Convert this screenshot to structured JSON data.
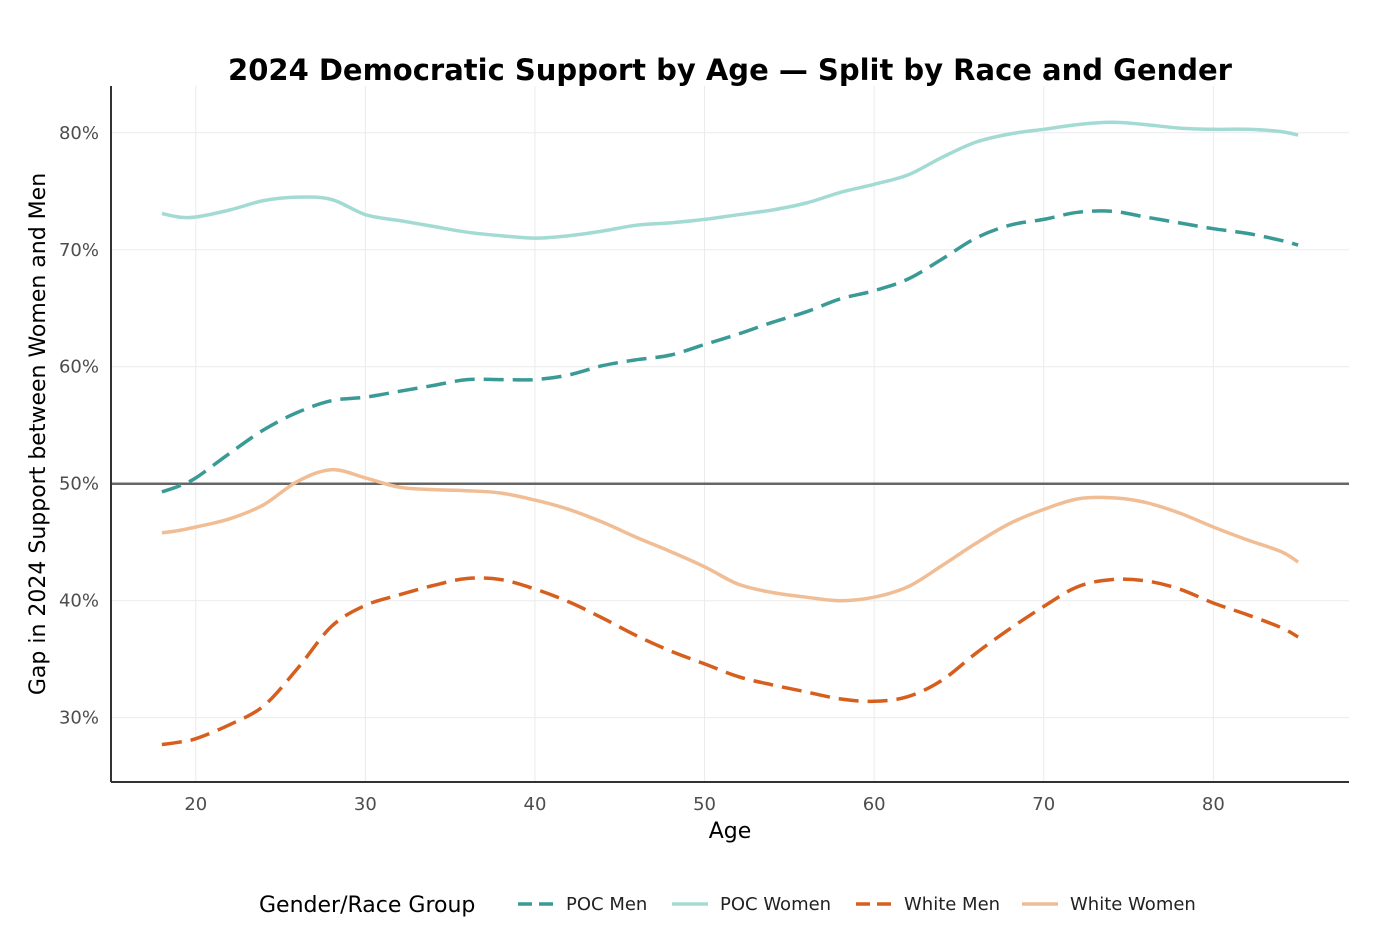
{
  "chart_data": {
    "type": "line",
    "title": "2024 Democratic Support by Age — Split by Race and Gender",
    "xlabel": "Age",
    "ylabel": "Gap in 2024 Support between Women and Men",
    "xlim": [
      15,
      88
    ],
    "ylim": [
      24.5,
      84
    ],
    "x_ticks": [
      20,
      30,
      40,
      50,
      60,
      70,
      80
    ],
    "y_ticks": [
      30,
      40,
      50,
      60,
      70,
      80
    ],
    "y_tick_labels": [
      "30%",
      "40%",
      "50%",
      "60%",
      "70%",
      "80%"
    ],
    "reference_line_y": 50,
    "grid": true,
    "legend": {
      "title": "Gender/Race Group",
      "placement": "bottom"
    },
    "x": [
      18,
      19,
      20,
      22,
      24,
      26,
      28,
      30,
      32,
      34,
      36,
      38,
      40,
      42,
      44,
      46,
      48,
      50,
      52,
      54,
      56,
      58,
      60,
      62,
      64,
      66,
      68,
      70,
      72,
      74,
      76,
      78,
      80,
      82,
      84,
      85
    ],
    "series": [
      {
        "name": "POC Men",
        "color": "#3a9a96",
        "dashed": true,
        "values": [
          49.3,
          49.8,
          50.5,
          52.6,
          54.6,
          56.1,
          57.1,
          57.4,
          57.9,
          58.4,
          58.9,
          58.9,
          58.9,
          59.3,
          60.1,
          60.6,
          61.0,
          61.9,
          62.8,
          63.8,
          64.7,
          65.8,
          66.5,
          67.5,
          69.2,
          71.0,
          72.1,
          72.6,
          73.2,
          73.3,
          72.8,
          72.3,
          71.8,
          71.4,
          70.8,
          70.4
        ]
      },
      {
        "name": "POC Women",
        "color": "#a3dbd4",
        "dashed": false,
        "values": [
          73.1,
          72.8,
          72.8,
          73.4,
          74.2,
          74.5,
          74.3,
          73.0,
          72.5,
          72.0,
          71.5,
          71.2,
          71.0,
          71.2,
          71.6,
          72.1,
          72.3,
          72.6,
          73.0,
          73.4,
          74.0,
          74.9,
          75.6,
          76.4,
          77.9,
          79.2,
          79.9,
          80.3,
          80.7,
          80.9,
          80.7,
          80.4,
          80.3,
          80.3,
          80.1,
          79.8
        ]
      },
      {
        "name": "White Men",
        "color": "#d65f1e",
        "dashed": true,
        "values": [
          27.7,
          27.9,
          28.2,
          29.4,
          31.0,
          34.2,
          37.8,
          39.6,
          40.5,
          41.3,
          41.9,
          41.8,
          41.0,
          39.9,
          38.5,
          37.0,
          35.7,
          34.6,
          33.5,
          32.8,
          32.2,
          31.6,
          31.4,
          31.8,
          33.2,
          35.5,
          37.6,
          39.5,
          41.2,
          41.8,
          41.7,
          41.0,
          39.8,
          38.8,
          37.7,
          36.9
        ]
      },
      {
        "name": "White Women",
        "color": "#f0bd95",
        "dashed": false,
        "values": [
          45.8,
          46.0,
          46.3,
          47.0,
          48.2,
          50.2,
          51.2,
          50.5,
          49.7,
          49.5,
          49.4,
          49.2,
          48.6,
          47.8,
          46.7,
          45.4,
          44.2,
          42.9,
          41.4,
          40.7,
          40.3,
          40.0,
          40.3,
          41.2,
          43.0,
          44.9,
          46.6,
          47.8,
          48.7,
          48.8,
          48.4,
          47.5,
          46.3,
          45.2,
          44.2,
          43.3
        ]
      }
    ]
  }
}
